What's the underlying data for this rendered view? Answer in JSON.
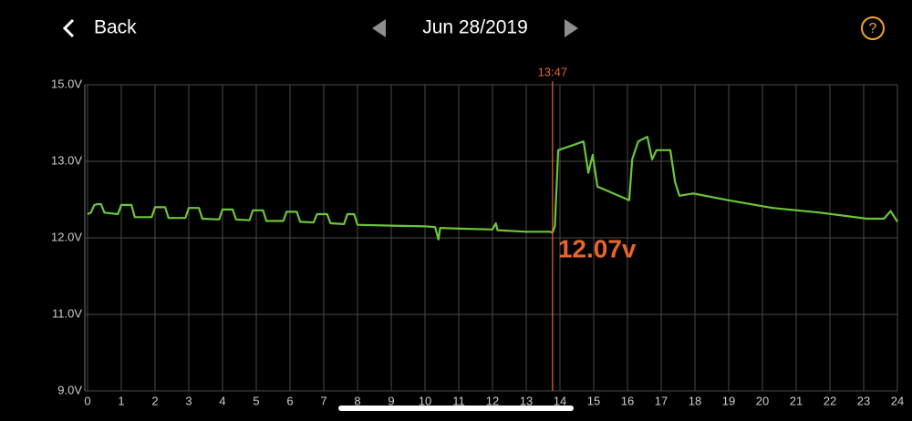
{
  "header": {
    "back": "Back",
    "date": "Jun 28/2019",
    "help": "?"
  },
  "chart_data": {
    "type": "line",
    "color": "#6cc63a",
    "grid": true,
    "xlim": [
      0,
      24
    ],
    "xticks": [
      0,
      1,
      2,
      3,
      4,
      5,
      6,
      7,
      8,
      9,
      10,
      11,
      12,
      13,
      14,
      15,
      16,
      17,
      18,
      19,
      20,
      21,
      22,
      23,
      24
    ],
    "ylim": [
      9,
      15
    ],
    "yticks": [
      {
        "value": 9,
        "label": "9.0V"
      },
      {
        "value": 11,
        "label": "11.0V"
      },
      {
        "value": 12,
        "label": "12.0V"
      },
      {
        "value": 13,
        "label": "13.0V"
      },
      {
        "value": 15,
        "label": "15.0V"
      }
    ],
    "x": [
      0.0,
      0.1,
      0.2,
      0.3,
      0.4,
      0.5,
      0.9,
      1.0,
      1.3,
      1.4,
      1.9,
      2.0,
      2.3,
      2.4,
      2.9,
      3.0,
      3.3,
      3.4,
      3.9,
      4.0,
      4.3,
      4.4,
      4.8,
      4.9,
      5.2,
      5.3,
      5.8,
      5.9,
      6.2,
      6.3,
      6.7,
      6.8,
      7.1,
      7.2,
      7.6,
      7.7,
      7.9,
      8.0,
      9.0,
      10.0,
      10.3,
      10.4,
      10.45,
      11.0,
      12.0,
      12.1,
      12.15,
      13.0,
      13.7,
      13.78,
      13.85,
      13.95,
      14.7,
      14.84,
      14.97,
      15.11,
      16.05,
      16.14,
      16.32,
      16.59,
      16.73,
      16.86,
      17.27,
      17.41,
      17.54,
      17.95,
      19.0,
      20.3,
      21.7,
      23.1,
      23.6,
      23.8,
      24.0
    ],
    "values": [
      12.31,
      12.33,
      12.43,
      12.44,
      12.44,
      12.33,
      12.31,
      12.43,
      12.43,
      12.27,
      12.27,
      12.4,
      12.4,
      12.26,
      12.26,
      12.39,
      12.39,
      12.25,
      12.24,
      12.37,
      12.37,
      12.24,
      12.23,
      12.36,
      12.36,
      12.22,
      12.22,
      12.34,
      12.34,
      12.21,
      12.2,
      12.31,
      12.31,
      12.19,
      12.18,
      12.31,
      12.31,
      12.17,
      12.16,
      12.15,
      12.14,
      11.98,
      12.13,
      12.12,
      12.11,
      12.19,
      12.1,
      12.08,
      12.08,
      12.07,
      12.15,
      13.29,
      13.52,
      12.85,
      13.17,
      12.67,
      12.49,
      13.05,
      13.52,
      13.64,
      13.05,
      13.29,
      13.29,
      12.73,
      12.55,
      12.58,
      12.49,
      12.39,
      12.33,
      12.25,
      12.25,
      12.35,
      12.21
    ],
    "marker": {
      "x": 13.78,
      "label": "13:47",
      "value": 12.07,
      "value_label": "12.07v",
      "color": "#e8652d"
    }
  }
}
